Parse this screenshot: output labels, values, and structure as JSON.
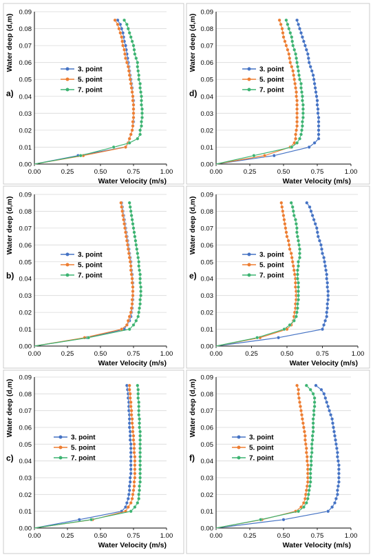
{
  "colors": {
    "point3": "#4472C4",
    "point5": "#ED7D31",
    "point7": "#3CB371",
    "grid": "#d9d9d9",
    "axis": "#000000",
    "frame": "#bfbfbf"
  },
  "chart_data": [
    {
      "type": "line",
      "panel_label": "a)",
      "xlabel": "Water Velocity (m/s)",
      "ylabel": "Water deep (d,m)",
      "xlim": [
        0,
        1.0
      ],
      "ylim": [
        0,
        0.09
      ],
      "xticks": [
        "0.00",
        "0.25",
        "0.50",
        "0.75",
        "1.00"
      ],
      "yticks": [
        "0.00",
        "0.01",
        "0.02",
        "0.03",
        "0.04",
        "0.05",
        "0.06",
        "0.07",
        "0.08",
        "0.09"
      ],
      "grid": true,
      "legend_position": "middle-left",
      "y": [
        0,
        0.005,
        0.01,
        0.0125,
        0.015,
        0.0175,
        0.02,
        0.0225,
        0.025,
        0.0275,
        0.03,
        0.0325,
        0.035,
        0.0375,
        0.04,
        0.0425,
        0.045,
        0.0475,
        0.05,
        0.0525,
        0.055,
        0.0575,
        0.06,
        0.0625,
        0.065,
        0.0675,
        0.07,
        0.0725,
        0.075,
        0.0775,
        0.08,
        0.0825,
        0.085
      ],
      "series": [
        {
          "name": "3. point",
          "color_key": "point3",
          "values": [
            0,
            0.33,
            0.69,
            0.71,
            0.72,
            0.73,
            0.74,
            0.745,
            0.75,
            0.75,
            0.75,
            0.75,
            0.75,
            0.75,
            0.745,
            0.74,
            0.74,
            0.735,
            0.73,
            0.725,
            0.72,
            0.715,
            0.71,
            0.705,
            0.7,
            0.695,
            0.69,
            0.68,
            0.675,
            0.67,
            0.66,
            0.65,
            0.63
          ]
        },
        {
          "name": "5. point",
          "color_key": "point5",
          "values": [
            0,
            0.37,
            0.69,
            0.71,
            0.72,
            0.73,
            0.74,
            0.745,
            0.745,
            0.75,
            0.75,
            0.75,
            0.75,
            0.745,
            0.745,
            0.74,
            0.735,
            0.73,
            0.725,
            0.72,
            0.715,
            0.71,
            0.7,
            0.69,
            0.685,
            0.68,
            0.67,
            0.665,
            0.66,
            0.65,
            0.64,
            0.63,
            0.61
          ]
        },
        {
          "name": "7. point",
          "color_key": "point7",
          "values": [
            0,
            0.35,
            0.6,
            0.72,
            0.78,
            0.8,
            0.8,
            0.81,
            0.81,
            0.815,
            0.815,
            0.815,
            0.81,
            0.81,
            0.81,
            0.805,
            0.8,
            0.8,
            0.79,
            0.79,
            0.785,
            0.78,
            0.78,
            0.77,
            0.76,
            0.755,
            0.75,
            0.74,
            0.73,
            0.72,
            0.71,
            0.7,
            0.68
          ]
        }
      ]
    },
    {
      "type": "line",
      "panel_label": "d)",
      "xlabel": "Water Velocity (m/s)",
      "ylabel": "Water deep (d,m)",
      "xlim": [
        0,
        1.0
      ],
      "ylim": [
        0,
        0.09
      ],
      "xticks": [
        "0.00",
        "0.25",
        "0.50",
        "0.75",
        "1.00"
      ],
      "yticks": [
        "0.00",
        "0.01",
        "0.02",
        "0.03",
        "0.04",
        "0.05",
        "0.06",
        "0.07",
        "0.08",
        "0.09"
      ],
      "grid": true,
      "legend_position": "middle-left",
      "y": [
        0,
        0.005,
        0.01,
        0.0125,
        0.015,
        0.0175,
        0.02,
        0.0225,
        0.025,
        0.0275,
        0.03,
        0.0325,
        0.035,
        0.0375,
        0.04,
        0.0425,
        0.045,
        0.0475,
        0.05,
        0.0525,
        0.055,
        0.0575,
        0.06,
        0.0625,
        0.065,
        0.0675,
        0.07,
        0.0725,
        0.075,
        0.0775,
        0.08,
        0.0825,
        0.085
      ],
      "series": [
        {
          "name": "3. point",
          "color_key": "point3",
          "values": [
            0,
            0.43,
            0.69,
            0.73,
            0.76,
            0.76,
            0.76,
            0.76,
            0.76,
            0.76,
            0.755,
            0.755,
            0.75,
            0.75,
            0.745,
            0.74,
            0.735,
            0.73,
            0.725,
            0.72,
            0.71,
            0.7,
            0.69,
            0.685,
            0.68,
            0.67,
            0.66,
            0.65,
            0.64,
            0.63,
            0.62,
            0.61,
            0.6
          ]
        },
        {
          "name": "5. point",
          "color_key": "point5",
          "values": [
            0,
            0.36,
            0.55,
            0.58,
            0.59,
            0.59,
            0.595,
            0.6,
            0.6,
            0.6,
            0.6,
            0.6,
            0.6,
            0.6,
            0.595,
            0.595,
            0.59,
            0.585,
            0.58,
            0.575,
            0.57,
            0.56,
            0.55,
            0.545,
            0.54,
            0.53,
            0.52,
            0.51,
            0.5,
            0.495,
            0.49,
            0.48,
            0.47
          ]
        },
        {
          "name": "7. point",
          "color_key": "point7",
          "values": [
            0,
            0.28,
            0.56,
            0.6,
            0.62,
            0.63,
            0.635,
            0.64,
            0.64,
            0.645,
            0.645,
            0.645,
            0.645,
            0.64,
            0.64,
            0.635,
            0.63,
            0.63,
            0.62,
            0.615,
            0.61,
            0.605,
            0.6,
            0.595,
            0.59,
            0.58,
            0.57,
            0.565,
            0.56,
            0.55,
            0.54,
            0.53,
            0.52
          ]
        }
      ]
    },
    {
      "type": "line",
      "panel_label": "b)",
      "xlabel": "Water Velocity (m/s)",
      "ylabel": "Water deep (d,m)",
      "xlim": [
        0,
        1.0
      ],
      "ylim": [
        0,
        0.09
      ],
      "xticks": [
        "0.00",
        "0.25",
        "0.50",
        "0.75",
        "1.00"
      ],
      "yticks": [
        "0.00",
        "0.01",
        "0.02",
        "0.03",
        "0.04",
        "0.05",
        "0.06",
        "0.07",
        "0.08",
        "0.09"
      ],
      "grid": true,
      "legend_position": "middle-left",
      "y": [
        0,
        0.005,
        0.01,
        0.0125,
        0.015,
        0.0175,
        0.02,
        0.0225,
        0.025,
        0.0275,
        0.03,
        0.0325,
        0.035,
        0.0375,
        0.04,
        0.0425,
        0.045,
        0.0475,
        0.05,
        0.0525,
        0.055,
        0.0575,
        0.06,
        0.0625,
        0.065,
        0.0675,
        0.07,
        0.0725,
        0.075,
        0.0775,
        0.08,
        0.0825,
        0.085
      ],
      "series": [
        {
          "name": "3. point",
          "color_key": "point3",
          "values": [
            0,
            0.4,
            0.68,
            0.7,
            0.72,
            0.73,
            0.735,
            0.74,
            0.74,
            0.745,
            0.745,
            0.745,
            0.745,
            0.745,
            0.74,
            0.74,
            0.735,
            0.73,
            0.73,
            0.725,
            0.72,
            0.715,
            0.71,
            0.705,
            0.7,
            0.695,
            0.69,
            0.685,
            0.68,
            0.675,
            0.67,
            0.665,
            0.66
          ]
        },
        {
          "name": "5. point",
          "color_key": "point5",
          "values": [
            0,
            0.38,
            0.66,
            0.7,
            0.71,
            0.72,
            0.73,
            0.735,
            0.74,
            0.74,
            0.745,
            0.745,
            0.745,
            0.74,
            0.74,
            0.735,
            0.73,
            0.73,
            0.725,
            0.72,
            0.715,
            0.71,
            0.705,
            0.7,
            0.695,
            0.69,
            0.685,
            0.68,
            0.675,
            0.67,
            0.665,
            0.66,
            0.655
          ]
        },
        {
          "name": "7. point",
          "color_key": "point7",
          "values": [
            0,
            0.41,
            0.72,
            0.75,
            0.77,
            0.785,
            0.79,
            0.795,
            0.8,
            0.8,
            0.805,
            0.805,
            0.805,
            0.8,
            0.8,
            0.8,
            0.795,
            0.79,
            0.79,
            0.785,
            0.78,
            0.775,
            0.77,
            0.765,
            0.76,
            0.755,
            0.75,
            0.745,
            0.74,
            0.735,
            0.73,
            0.725,
            0.72
          ]
        }
      ]
    },
    {
      "type": "line",
      "panel_label": "e)",
      "xlabel": "Water Velocity (m/s)",
      "ylabel": "Water deep (d,m)",
      "xlim": [
        0,
        1.0
      ],
      "ylim": [
        0,
        0.09
      ],
      "xticks": [
        "0.00",
        "0.25",
        "0.50",
        "0.75",
        "1.00"
      ],
      "yticks": [
        "0.00",
        "0.01",
        "0.02",
        "0.03",
        "0.04",
        "0.05",
        "0.06",
        "0.07",
        "0.08",
        "0.09"
      ],
      "grid": true,
      "legend_position": "middle-left",
      "y": [
        0,
        0.005,
        0.01,
        0.0125,
        0.015,
        0.0175,
        0.02,
        0.0225,
        0.025,
        0.0275,
        0.03,
        0.0325,
        0.035,
        0.0375,
        0.04,
        0.0425,
        0.045,
        0.0475,
        0.05,
        0.0525,
        0.055,
        0.0575,
        0.06,
        0.0625,
        0.065,
        0.0675,
        0.07,
        0.0725,
        0.075,
        0.0775,
        0.08,
        0.0825,
        0.085
      ],
      "series": [
        {
          "name": "3. point",
          "color_key": "point3",
          "values": [
            0,
            0.44,
            0.75,
            0.76,
            0.77,
            0.78,
            0.78,
            0.785,
            0.785,
            0.79,
            0.79,
            0.79,
            0.785,
            0.785,
            0.78,
            0.78,
            0.775,
            0.77,
            0.765,
            0.76,
            0.75,
            0.745,
            0.74,
            0.73,
            0.72,
            0.715,
            0.71,
            0.7,
            0.69,
            0.68,
            0.67,
            0.66,
            0.64
          ]
        },
        {
          "name": "5. point",
          "color_key": "point5",
          "values": [
            0,
            0.31,
            0.5,
            0.53,
            0.545,
            0.55,
            0.555,
            0.56,
            0.56,
            0.565,
            0.565,
            0.565,
            0.56,
            0.56,
            0.56,
            0.555,
            0.55,
            0.545,
            0.54,
            0.535,
            0.53,
            0.52,
            0.515,
            0.51,
            0.5,
            0.495,
            0.49,
            0.485,
            0.48,
            0.475,
            0.47,
            0.465,
            0.46
          ]
        },
        {
          "name": "7. point",
          "color_key": "point7",
          "values": [
            0,
            0.29,
            0.48,
            0.52,
            0.55,
            0.565,
            0.57,
            0.575,
            0.575,
            0.58,
            0.58,
            0.58,
            0.58,
            0.58,
            0.575,
            0.575,
            0.575,
            0.58,
            0.58,
            0.59,
            0.59,
            0.59,
            0.585,
            0.58,
            0.575,
            0.57,
            0.57,
            0.565,
            0.56,
            0.55,
            0.545,
            0.54,
            0.53
          ]
        }
      ]
    },
    {
      "type": "line",
      "panel_label": "c)",
      "xlabel": "Water Velocity (m/s)",
      "ylabel": "Water deep (d,m)",
      "xlim": [
        0,
        1.0
      ],
      "ylim": [
        0,
        0.09
      ],
      "xticks": [
        "0.00",
        "0.25",
        "0.50",
        "0.75",
        "1.00"
      ],
      "yticks": [
        "0.00",
        "0.01",
        "0.02",
        "0.03",
        "0.04",
        "0.05",
        "0.06",
        "0.07",
        "0.08",
        "0.09"
      ],
      "grid": true,
      "legend_position": "middle-left",
      "y": [
        0,
        0.005,
        0.01,
        0.0125,
        0.015,
        0.0175,
        0.02,
        0.0225,
        0.025,
        0.0275,
        0.03,
        0.0325,
        0.035,
        0.0375,
        0.04,
        0.0425,
        0.045,
        0.0475,
        0.05,
        0.0525,
        0.055,
        0.0575,
        0.06,
        0.0625,
        0.065,
        0.0675,
        0.07,
        0.0725,
        0.075,
        0.0775,
        0.08,
        0.0825,
        0.085
      ],
      "series": [
        {
          "name": "3. point",
          "color_key": "point3",
          "values": [
            0,
            0.34,
            0.66,
            0.69,
            0.7,
            0.71,
            0.715,
            0.72,
            0.72,
            0.725,
            0.725,
            0.73,
            0.73,
            0.73,
            0.73,
            0.73,
            0.73,
            0.73,
            0.73,
            0.725,
            0.725,
            0.725,
            0.72,
            0.72,
            0.72,
            0.72,
            0.715,
            0.715,
            0.715,
            0.71,
            0.71,
            0.705,
            0.7
          ]
        },
        {
          "name": "5. point",
          "color_key": "point5",
          "values": [
            0,
            0.44,
            0.69,
            0.71,
            0.73,
            0.74,
            0.745,
            0.75,
            0.755,
            0.755,
            0.76,
            0.76,
            0.76,
            0.76,
            0.76,
            0.76,
            0.755,
            0.755,
            0.755,
            0.75,
            0.75,
            0.745,
            0.745,
            0.74,
            0.74,
            0.735,
            0.735,
            0.73,
            0.73,
            0.725,
            0.725,
            0.72,
            0.72
          ]
        },
        {
          "name": "7. point",
          "color_key": "point7",
          "values": [
            0,
            0.43,
            0.73,
            0.76,
            0.78,
            0.79,
            0.79,
            0.795,
            0.795,
            0.8,
            0.8,
            0.8,
            0.8,
            0.8,
            0.8,
            0.8,
            0.8,
            0.8,
            0.8,
            0.8,
            0.8,
            0.8,
            0.795,
            0.795,
            0.795,
            0.79,
            0.79,
            0.79,
            0.79,
            0.785,
            0.785,
            0.785,
            0.78
          ]
        }
      ]
    },
    {
      "type": "line",
      "panel_label": "f)",
      "xlabel": "Water Velocity (m/s)",
      "ylabel": "Water deep (d,m)",
      "xlim": [
        0,
        1.0
      ],
      "ylim": [
        0,
        0.09
      ],
      "xticks": [
        "0.00",
        "0.25",
        "0.50",
        "0.75",
        "1.00"
      ],
      "yticks": [
        "0.00",
        "0.01",
        "0.02",
        "0.03",
        "0.04",
        "0.05",
        "0.06",
        "0.07",
        "0.08",
        "0.09"
      ],
      "grid": true,
      "legend_position": "middle-left",
      "y": [
        0,
        0.005,
        0.01,
        0.0125,
        0.015,
        0.0175,
        0.02,
        0.0225,
        0.025,
        0.0275,
        0.03,
        0.0325,
        0.035,
        0.0375,
        0.04,
        0.0425,
        0.045,
        0.0475,
        0.05,
        0.0525,
        0.055,
        0.0575,
        0.06,
        0.0625,
        0.065,
        0.0675,
        0.07,
        0.0725,
        0.075,
        0.0775,
        0.08,
        0.0825,
        0.085
      ],
      "series": [
        {
          "name": "3. point",
          "color_key": "point3",
          "values": [
            0,
            0.5,
            0.83,
            0.86,
            0.88,
            0.89,
            0.9,
            0.9,
            0.905,
            0.91,
            0.91,
            0.91,
            0.91,
            0.91,
            0.905,
            0.9,
            0.9,
            0.895,
            0.89,
            0.885,
            0.88,
            0.875,
            0.87,
            0.865,
            0.86,
            0.85,
            0.84,
            0.83,
            0.82,
            0.81,
            0.8,
            0.78,
            0.74
          ]
        },
        {
          "name": "5. point",
          "color_key": "point5",
          "values": [
            0,
            0.34,
            0.59,
            0.63,
            0.65,
            0.66,
            0.665,
            0.67,
            0.675,
            0.68,
            0.68,
            0.68,
            0.68,
            0.68,
            0.675,
            0.675,
            0.67,
            0.67,
            0.665,
            0.66,
            0.66,
            0.655,
            0.65,
            0.645,
            0.64,
            0.635,
            0.63,
            0.625,
            0.62,
            0.615,
            0.61,
            0.61,
            0.6
          ]
        },
        {
          "name": "7. point",
          "color_key": "point7",
          "values": [
            0,
            0.33,
            0.61,
            0.65,
            0.67,
            0.68,
            0.685,
            0.69,
            0.695,
            0.7,
            0.7,
            0.7,
            0.7,
            0.705,
            0.705,
            0.705,
            0.71,
            0.71,
            0.71,
            0.715,
            0.715,
            0.72,
            0.72,
            0.72,
            0.72,
            0.725,
            0.725,
            0.73,
            0.73,
            0.73,
            0.72,
            0.7,
            0.67
          ]
        }
      ]
    }
  ]
}
